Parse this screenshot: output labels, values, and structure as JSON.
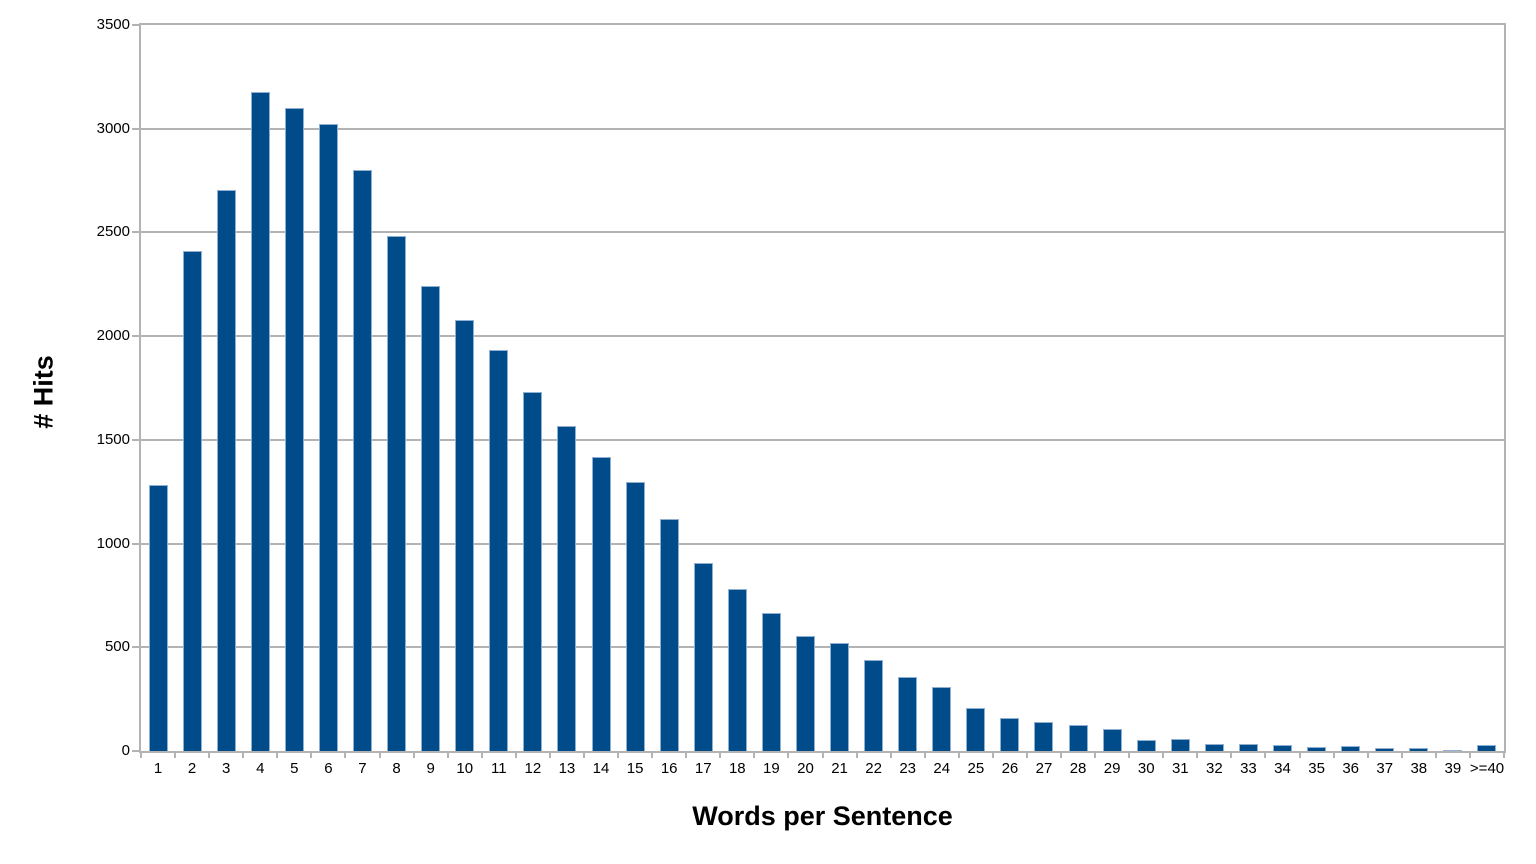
{
  "chart_data": {
    "type": "bar",
    "title": "",
    "xlabel": "Words per Sentence",
    "ylabel": "# Hits",
    "categories": [
      "1",
      "2",
      "3",
      "4",
      "5",
      "6",
      "7",
      "8",
      "9",
      "10",
      "11",
      "12",
      "13",
      "14",
      "15",
      "16",
      "17",
      "18",
      "19",
      "20",
      "21",
      "22",
      "23",
      "24",
      "25",
      "26",
      "27",
      "28",
      "29",
      "30",
      "31",
      "32",
      "33",
      "34",
      "35",
      "36",
      "37",
      "38",
      "39",
      ">=40"
    ],
    "values": [
      1280,
      2410,
      2705,
      3175,
      3100,
      3025,
      2800,
      2485,
      2240,
      2080,
      1935,
      1730,
      1565,
      1415,
      1295,
      1120,
      905,
      780,
      665,
      555,
      520,
      440,
      355,
      310,
      205,
      160,
      140,
      125,
      105,
      55,
      60,
      35,
      32,
      28,
      18,
      25,
      14,
      13,
      7,
      28
    ],
    "ylim": [
      0,
      3500
    ],
    "ytick_step": 500,
    "ytick_labels": [
      "0",
      "500",
      "1000",
      "1500",
      "2000",
      "2500",
      "3000",
      "3500"
    ],
    "grid": "horizontal",
    "legend": "none",
    "colors": {
      "bar_fill": "#004b8a",
      "bar_border": "#8fb0d1",
      "grid_line": "#b3b3b3",
      "axis_line": "#b3b3b3",
      "text": "#000000",
      "background": "#ffffff"
    }
  }
}
